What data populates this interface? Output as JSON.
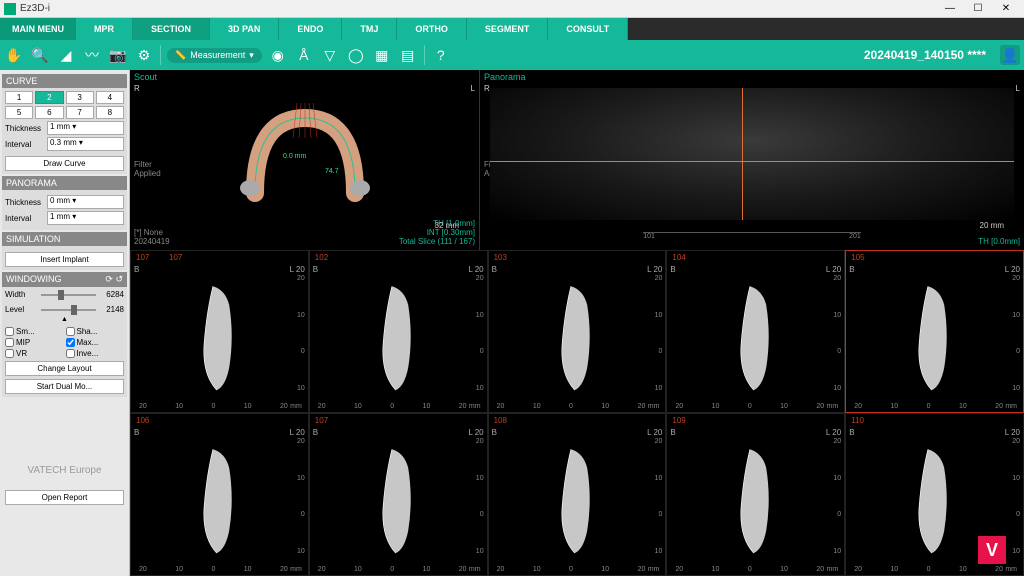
{
  "app": {
    "title": "Ez3D-i"
  },
  "winbtns": {
    "min": "—",
    "max": "☐",
    "close": "✕"
  },
  "mainmenu": "MAIN MENU",
  "tabs": [
    "MPR",
    "SECTION",
    "3D PAN",
    "ENDO",
    "TMJ",
    "ORTHO",
    "SEGMENT",
    "CONSULT"
  ],
  "activeTab": 1,
  "toolbar": {
    "measurement": "Measurement",
    "patient": "20240419_140150 ****"
  },
  "sidebar": {
    "curve": {
      "title": "CURVE",
      "nums1": [
        "1",
        "2",
        "3",
        "4"
      ],
      "nums2": [
        "5",
        "6",
        "7",
        "8"
      ],
      "thickness_label": "Thickness",
      "thickness": "1 mm",
      "interval_label": "Interval",
      "interval": "0.3 mm",
      "draw": "Draw Curve"
    },
    "panorama": {
      "title": "PANORAMA",
      "thickness_label": "Thickness",
      "thickness": "0 mm",
      "interval_label": "Interval",
      "interval": "1 mm"
    },
    "simulation": {
      "title": "SIMULATION",
      "insert": "Insert Implant"
    },
    "windowing": {
      "title": "WINDOWING",
      "width_label": "Width",
      "width_val": "6284",
      "level_label": "Level",
      "level_val": "2148",
      "checks": [
        "Sm...",
        "Sha...",
        "MIP",
        "Max...",
        "VR",
        "Inve..."
      ]
    },
    "change_layout": "Change Layout",
    "dual": "Start Dual Mo...",
    "brand": "VATECH Europe",
    "report": "Open Report"
  },
  "scout": {
    "label": "Scout",
    "R": "R",
    "L": "L",
    "filter": "Filter\nApplied",
    "meas1": "0.0 mm",
    "meas2": "74.7",
    "bl1": "[*] None",
    "bl2": "20240419",
    "th": "TH [1.0mm]",
    "int": "INT [0.30mm]",
    "total": "Total Slice (111 / 167)",
    "scale": "32 mm"
  },
  "panorama": {
    "label": "Panorama",
    "R": "R",
    "L": "L",
    "filter": "Filter\nApplied",
    "scale": "20 mm",
    "th": "TH [0.0mm]",
    "ticks": [
      "101",
      "201"
    ]
  },
  "slices": {
    "nums_top": [
      "102",
      "103",
      "104",
      "105"
    ],
    "nums_bot": [
      "106",
      "107",
      "108",
      "109",
      "110"
    ],
    "first_dup": "107",
    "B": "B",
    "L20": "L 20",
    "vscale": [
      "20",
      "10",
      "0",
      "10"
    ],
    "hscale": [
      "20",
      "10",
      "0",
      "10",
      "20"
    ],
    "mm": "mm"
  },
  "colors": {
    "teal": "#16b89a",
    "orange": "#e07030",
    "red": "#c03020",
    "pink": "#e6134b"
  }
}
